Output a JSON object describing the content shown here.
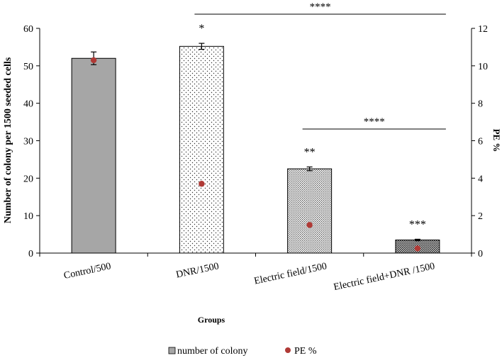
{
  "chart_data": {
    "type": "bar",
    "xlabel": "Groups",
    "ylabel": "Number of colony per 1500 seeded cells",
    "y2label": "PE %",
    "ylim": [
      0,
      60
    ],
    "y2lim": [
      0,
      12
    ],
    "yticks": [
      0,
      10,
      20,
      30,
      40,
      50,
      60
    ],
    "y2ticks": [
      0,
      2,
      4,
      6,
      8,
      10,
      12
    ],
    "categories": [
      "Control/500",
      "DNR/1500",
      "Electric field/1500",
      "Electric field+DNR /1500"
    ],
    "series": [
      {
        "name": "number of colony",
        "type": "bar",
        "axis": "left",
        "values": [
          52,
          55.2,
          22.5,
          3.5
        ],
        "errors": [
          1.7,
          0.8,
          0.5,
          0.2
        ]
      },
      {
        "name": "PE %",
        "type": "scatter",
        "axis": "right",
        "values": [
          10.3,
          3.7,
          1.5,
          0.25
        ]
      }
    ],
    "significance": [
      "",
      "*",
      "**",
      "***"
    ],
    "brackets": [
      {
        "from": 1,
        "to": 3,
        "label": "****"
      },
      {
        "from": 2,
        "to": 3,
        "label": "****"
      }
    ],
    "legend": [
      "number of colony",
      "PE %"
    ],
    "legend_position": "bottom",
    "grid": false
  },
  "colors": {
    "bar_control": "#a6a6a6",
    "marker": "#b03a36",
    "axis": "#000000"
  }
}
